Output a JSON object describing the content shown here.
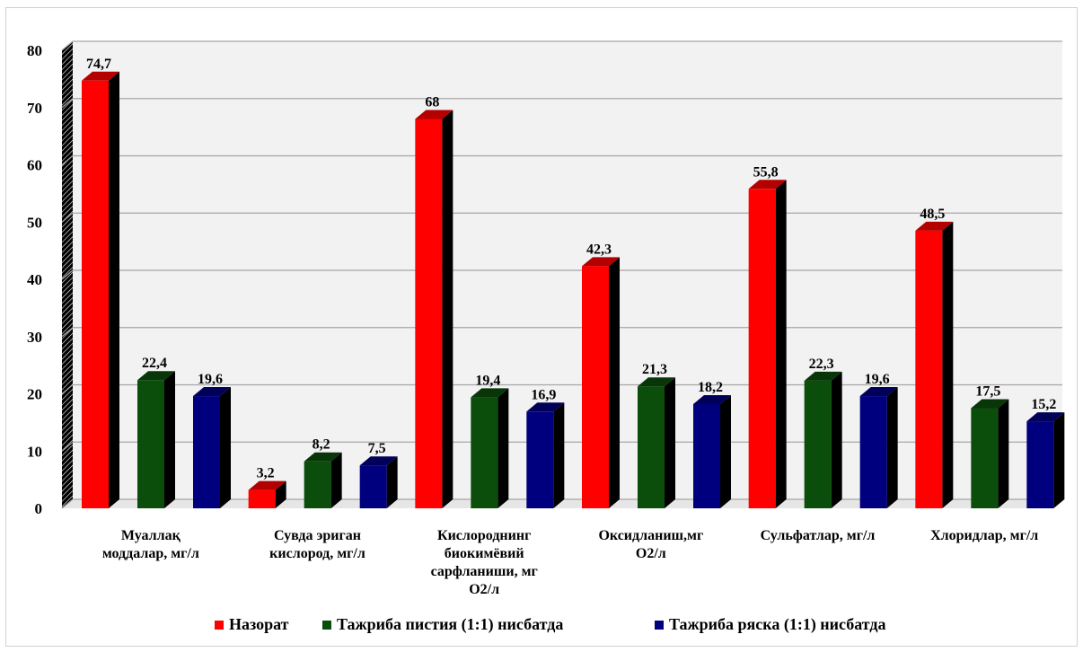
{
  "chart_data": {
    "type": "bar",
    "title": "",
    "xlabel": "",
    "ylabel": "",
    "ylim": [
      0,
      80
    ],
    "yticks": [
      "0",
      "10",
      "20",
      "30",
      "40",
      "50",
      "60",
      "70",
      "80"
    ],
    "grid": true,
    "three_d": true,
    "legend_position": "bottom",
    "categories": [
      [
        "Муаллақ",
        "моддалар,      мг/л"
      ],
      [
        "Сувда эриган",
        "кислород, мг/л"
      ],
      [
        "Кислороднинг",
        "биокимёвий",
        "сарфланиши, мг",
        "О2/л"
      ],
      [
        "Оксидланиш,мг",
        "О2/л"
      ],
      [
        "Сульфатлар,  мг/л"
      ],
      [
        "Хлоридлар, мг/л"
      ]
    ],
    "series": [
      {
        "name": "Назорат",
        "color": "#ff0000",
        "values": [
          74.7,
          3.2,
          68,
          42.3,
          55.8,
          48.5
        ],
        "labels": [
          "74,7",
          "3,2",
          "68",
          "42,3",
          "55,8",
          "48,5"
        ]
      },
      {
        "name": "Тажриба  пистия (1:1) нисбатда",
        "color": "#0b4d0b",
        "values": [
          22.4,
          8.2,
          19.4,
          21.3,
          22.3,
          17.5
        ],
        "labels": [
          "22,4",
          "8,2",
          "19,4",
          "21,3",
          "22,3",
          "17,5"
        ]
      },
      {
        "name": "Тажриба  ряска (1:1) нисбатда",
        "color": "#00007f",
        "values": [
          19.6,
          7.5,
          16.9,
          18.2,
          19.6,
          15.2
        ],
        "labels": [
          "19,6",
          "7,5",
          "16,9",
          "18,2",
          "19,6",
          "15,2"
        ]
      }
    ]
  }
}
